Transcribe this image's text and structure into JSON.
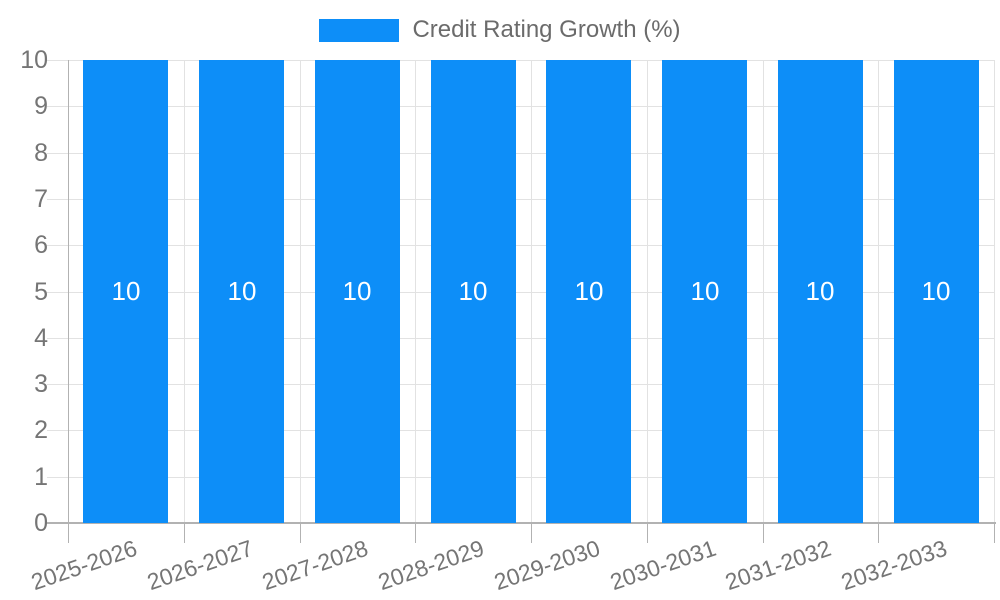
{
  "chart_data": {
    "type": "bar",
    "title": "Credit Rating Growth (%)",
    "legend": {
      "position": "top",
      "label": "Credit Rating Growth (%)"
    },
    "categories": [
      "2025-2026",
      "2026-2027",
      "2027-2028",
      "2028-2029",
      "2029-2030",
      "2030-2031",
      "2031-2032",
      "2032-2033"
    ],
    "series": [
      {
        "name": "Credit Rating Growth (%)",
        "values": [
          10,
          10,
          10,
          10,
          10,
          10,
          10,
          10
        ]
      }
    ],
    "bar_value_labels": [
      "10",
      "10",
      "10",
      "10",
      "10",
      "10",
      "10",
      "10"
    ],
    "xlabel": "",
    "ylabel": "",
    "ylim": [
      0,
      10
    ],
    "yticks": [
      0,
      1,
      2,
      3,
      4,
      5,
      6,
      7,
      8,
      9,
      10
    ],
    "grid": true,
    "colors": {
      "bar": "#0d8ef8",
      "bar_label": "#ffffff",
      "tick_label": "#757575",
      "legend_text": "#6b6b6b",
      "gridline": "#e2e2e2",
      "axis": "#b2b2b2"
    }
  }
}
